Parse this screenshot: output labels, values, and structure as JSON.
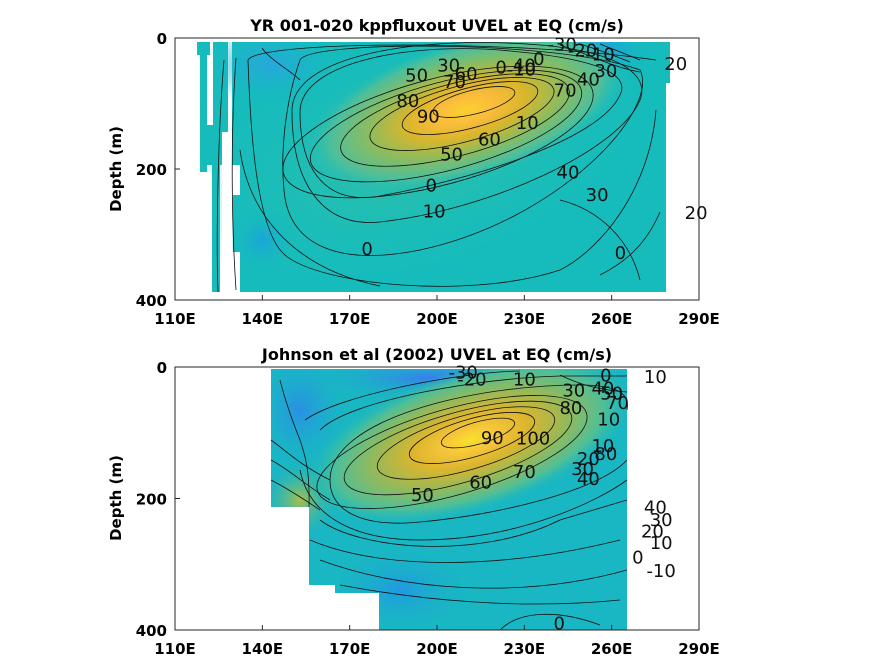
{
  "chart_data": [
    {
      "type": "contour",
      "title": "YR 001-020 kppfluxout UVEL at EQ (cm/s)",
      "xlabel": "",
      "ylabel": "Depth (m)",
      "xlim": [
        110,
        290
      ],
      "ylim": [
        400,
        0
      ],
      "x_ticks": [
        "110E",
        "140E",
        "170E",
        "200E",
        "230E",
        "260E",
        "290E"
      ],
      "y_ticks": [
        "0",
        "200",
        "400"
      ],
      "colormap": "parula",
      "core": {
        "lon": 218,
        "depth": 100,
        "max_cms": 95
      },
      "contour_labels": [
        {
          "text": "-10",
          "lon": 119,
          "depth": 48
        },
        {
          "text": "0",
          "lon": 112,
          "depth": 45
        },
        {
          "text": "0",
          "lon": 125,
          "depth": 32
        },
        {
          "text": "20",
          "lon": 172,
          "depth": 40
        },
        {
          "text": "50",
          "lon": 193,
          "depth": 57
        },
        {
          "text": "30",
          "lon": 204,
          "depth": 42
        },
        {
          "text": "60",
          "lon": 210,
          "depth": 55
        },
        {
          "text": "70",
          "lon": 206,
          "depth": 67
        },
        {
          "text": "40",
          "lon": 230,
          "depth": 42
        },
        {
          "text": "80",
          "lon": 190,
          "depth": 96
        },
        {
          "text": "90",
          "lon": 197,
          "depth": 120
        },
        {
          "text": "70",
          "lon": 244,
          "depth": 80
        },
        {
          "text": "-30",
          "lon": 243,
          "depth": 10
        },
        {
          "text": "-20",
          "lon": 250,
          "depth": 19
        },
        {
          "text": "-10",
          "lon": 256,
          "depth": 25
        },
        {
          "text": "30",
          "lon": 258,
          "depth": 50
        },
        {
          "text": "40",
          "lon": 252,
          "depth": 63
        },
        {
          "text": "10",
          "lon": 121,
          "depth": 130
        },
        {
          "text": "60",
          "lon": 218,
          "depth": 155
        },
        {
          "text": "50",
          "lon": 205,
          "depth": 178
        },
        {
          "text": "40",
          "lon": 135,
          "depth": 205
        },
        {
          "text": "0",
          "lon": 88,
          "depth": 225
        },
        {
          "text": "30",
          "lon": 145,
          "depth": 240
        },
        {
          "text": "20",
          "lon": 179,
          "depth": 267
        },
        {
          "text": "10",
          "lon": 199,
          "depth": 265
        },
        {
          "text": "0",
          "lon": 66,
          "depth": 322
        },
        {
          "text": "0",
          "lon": 263,
          "depth": 328
        }
      ]
    },
    {
      "type": "contour",
      "title": "Johnson et al (2002) UVEL at EQ (cm/s)",
      "xlabel": "",
      "ylabel": "Depth (m)",
      "xlim": [
        110,
        290
      ],
      "ylim": [
        400,
        0
      ],
      "x_ticks": [
        "110E",
        "140E",
        "170E",
        "200E",
        "230E",
        "260E",
        "290E"
      ],
      "y_ticks": [
        "0",
        "200",
        "400"
      ],
      "colormap": "parula",
      "core": {
        "lon": 212,
        "depth": 125,
        "max_cms": 105
      },
      "contour_labels": [
        {
          "text": "-30",
          "lon": 209,
          "depth": 8
        },
        {
          "text": "-20",
          "lon": 212,
          "depth": 19
        },
        {
          "text": "10",
          "lon": 230,
          "depth": 19
        },
        {
          "text": "0",
          "lon": 258,
          "depth": 13
        },
        {
          "text": "10",
          "lon": 275,
          "depth": 15
        },
        {
          "text": "50",
          "lon": 260,
          "depth": 40
        },
        {
          "text": "40",
          "lon": 257,
          "depth": 33
        },
        {
          "text": "30",
          "lon": 247,
          "depth": 36
        },
        {
          "text": "70",
          "lon": 262,
          "depth": 55
        },
        {
          "text": "80",
          "lon": 246,
          "depth": 62
        },
        {
          "text": "10",
          "lon": 149,
          "depth": 80
        },
        {
          "text": "90",
          "lon": 219,
          "depth": 108
        },
        {
          "text": "100",
          "lon": 233,
          "depth": 109
        },
        {
          "text": "10",
          "lon": 147,
          "depth": 120
        },
        {
          "text": "20",
          "lon": 142,
          "depth": 140
        },
        {
          "text": "30",
          "lon": 140,
          "depth": 155
        },
        {
          "text": "40",
          "lon": 142,
          "depth": 170
        },
        {
          "text": "80",
          "lon": 258,
          "depth": 132
        },
        {
          "text": "70",
          "lon": 230,
          "depth": 160
        },
        {
          "text": "60",
          "lon": 215,
          "depth": 176
        },
        {
          "text": "50",
          "lon": 195,
          "depth": 195
        },
        {
          "text": "40",
          "lon": 165,
          "depth": 214
        },
        {
          "text": "30",
          "lon": 167,
          "depth": 233
        },
        {
          "text": "20",
          "lon": 164,
          "depth": 250
        },
        {
          "text": "10",
          "lon": 167,
          "depth": 268
        },
        {
          "text": "0",
          "lon": 159,
          "depth": 290
        },
        {
          "text": "-10",
          "lon": 167,
          "depth": 310
        },
        {
          "text": "0",
          "lon": 242,
          "depth": 390
        }
      ]
    }
  ]
}
